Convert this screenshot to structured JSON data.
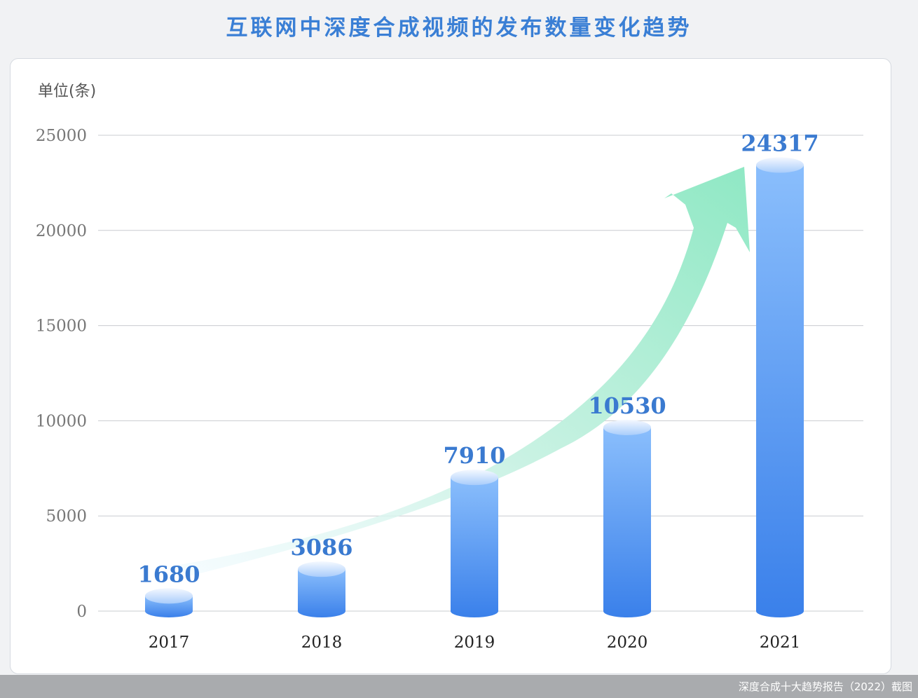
{
  "title": "互联网中深度合成视频的发布数量变化趋势",
  "unit_label": "单位(条)",
  "footer": "深度合成十大趋势报告（2022）截图",
  "colors": {
    "title": "#3a7fd5",
    "bar_top": "#8abefc",
    "bar_bottom": "#3a80ea",
    "value_label": "#3a7ad0",
    "arrow": "#8fe8c4",
    "grid": "#c9ccd0"
  },
  "chart_data": {
    "type": "bar",
    "categories": [
      "2017",
      "2018",
      "2019",
      "2020",
      "2021"
    ],
    "values": [
      1680,
      3086,
      7910,
      10530,
      24317
    ],
    "data_labels": [
      "1680",
      "3086",
      "7910",
      "10530",
      "24317"
    ],
    "yticks": [
      "0",
      "5000",
      "10000",
      "15000",
      "20000",
      "25000"
    ],
    "ylim": [
      0,
      25000
    ],
    "ylabel": "单位(条)",
    "grid": true,
    "bar_style": "cylinder",
    "trend_arrow": true
  }
}
